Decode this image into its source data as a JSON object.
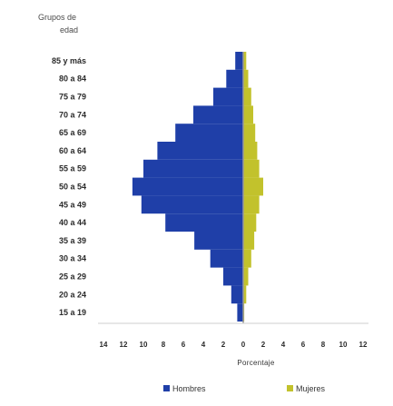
{
  "chart_data": {
    "type": "bar",
    "orientation": "horizontal",
    "title": "",
    "ylabel_lines": [
      "Grupos de",
      "edad"
    ],
    "xlabel": "Porcentaje",
    "categories": [
      "85 y más",
      "80 a 84",
      "75 a 79",
      "70 a 74",
      "65 a 69",
      "60 a 64",
      "55 a 59",
      "50 a 54",
      "45 a 49",
      "40 a 44",
      "35 a 39",
      "30 a 34",
      "25 a 29",
      "20 a 24",
      "15 a 19"
    ],
    "x_ticks": [
      "14",
      "12",
      "10",
      "8",
      "6",
      "4",
      "2",
      "0",
      "2",
      "4",
      "6",
      "8",
      "10",
      "12"
    ],
    "xlim": [
      -14,
      12
    ],
    "series": [
      {
        "name": "Hombres",
        "color": "#1f3fa8",
        "values": [
          0.8,
          1.7,
          3.0,
          5.0,
          6.8,
          8.6,
          10.0,
          11.1,
          10.2,
          7.8,
          4.9,
          3.3,
          2.0,
          1.2,
          0.6
        ]
      },
      {
        "name": "Mujeres",
        "color": "#c2c22c",
        "values": [
          0.3,
          0.5,
          0.8,
          1.0,
          1.2,
          1.4,
          1.6,
          2.0,
          1.6,
          1.3,
          1.1,
          0.8,
          0.5,
          0.3,
          0.1
        ]
      }
    ],
    "grid": false,
    "legend": "bottom"
  }
}
